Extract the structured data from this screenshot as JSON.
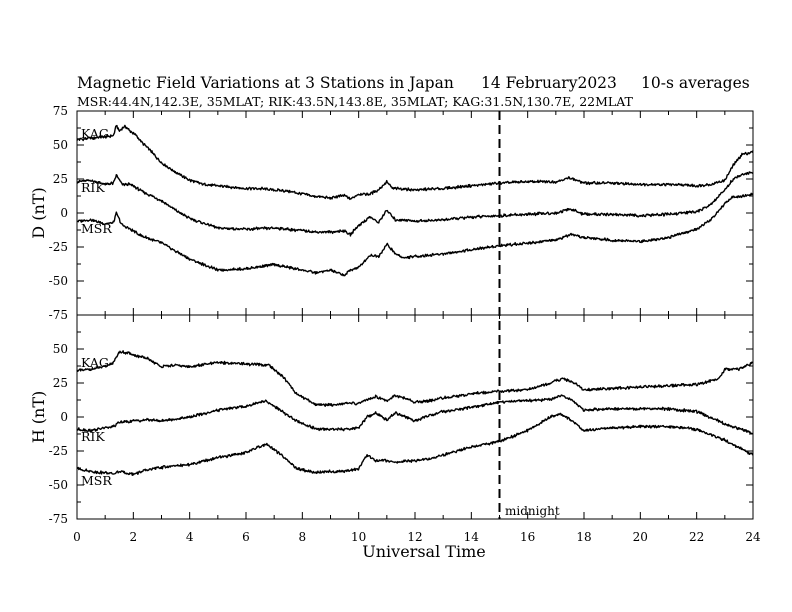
{
  "header": {
    "title": "Magnetic Field Variations at 3 Stations in Japan",
    "date": "14 February2023",
    "averaging": "10-s averages",
    "stations_line": "MSR:44.4N,142.3E, 35MLAT;  RIK:43.5N,143.8E, 35MLAT;  KAG:31.5N,130.7E, 22MLAT"
  },
  "chart_data": [
    {
      "type": "line",
      "panel": "D",
      "ylabel": "D (nT)",
      "xlabel": "",
      "xlim": [
        0,
        24
      ],
      "ylim": [
        -75,
        75
      ],
      "yticks": [
        -75,
        -50,
        -25,
        0,
        25,
        50,
        75
      ],
      "xticks": [
        0,
        2,
        4,
        6,
        8,
        10,
        12,
        14,
        16,
        18,
        20,
        22,
        24
      ],
      "series": [
        {
          "name": "KAG",
          "x": [
            0,
            0.5,
            1,
            1.3,
            1.4,
            1.5,
            1.7,
            1.9,
            2.1,
            2.3,
            2.6,
            3,
            3.5,
            4,
            4.5,
            5,
            5.5,
            6,
            6.5,
            7,
            7.5,
            8,
            8.5,
            9,
            9.5,
            9.7,
            10,
            10.4,
            10.7,
            11,
            11.2,
            11.5,
            12,
            13,
            14,
            15,
            16,
            17,
            17.5,
            18,
            19,
            20,
            21,
            22,
            22.5,
            23,
            23.3,
            23.6,
            24
          ],
          "y": [
            54,
            55,
            56,
            57,
            65,
            60,
            64,
            60,
            57,
            52,
            46,
            37,
            30,
            24,
            21,
            20,
            19,
            18,
            18,
            17,
            16,
            14,
            12,
            11,
            13,
            10,
            14,
            14,
            17,
            23,
            18,
            18,
            17,
            18,
            20,
            22,
            23,
            23,
            26,
            22,
            22,
            21,
            21,
            20,
            21,
            24,
            35,
            43,
            45
          ]
        },
        {
          "name": "RIK",
          "x": [
            0,
            0.5,
            1,
            1.3,
            1.4,
            1.6,
            1.9,
            2.3,
            3,
            3.5,
            4,
            5,
            6,
            7,
            7.5,
            8,
            8.5,
            9,
            9.5,
            9.7,
            10,
            10.4,
            10.7,
            11,
            11.3,
            11.6,
            12,
            13,
            14,
            15,
            16,
            17,
            17.5,
            18,
            19,
            20,
            21,
            22,
            22.5,
            23,
            23.3,
            23.6,
            24
          ],
          "y": [
            23,
            24,
            21,
            22,
            28,
            21,
            21,
            16,
            9,
            2,
            -4,
            -11,
            -12,
            -11,
            -12,
            -13,
            -14,
            -14,
            -13,
            -16,
            -9,
            -3,
            -7,
            2,
            -5,
            -5,
            -6,
            -5,
            -3,
            -2,
            -1,
            0,
            3,
            -1,
            -1,
            -2,
            -1,
            1,
            6,
            17,
            25,
            28,
            30
          ]
        },
        {
          "name": "MSR",
          "x": [
            0,
            0.5,
            1,
            1.3,
            1.4,
            1.6,
            1.9,
            2.3,
            3,
            3.5,
            4,
            5,
            6,
            7,
            7.5,
            8,
            8.5,
            9,
            9.5,
            9.7,
            10,
            10.4,
            10.7,
            11,
            11.3,
            11.6,
            12,
            13,
            14,
            15,
            16,
            17,
            17.5,
            18,
            19,
            20,
            21,
            22,
            22.5,
            23,
            23.3,
            23.6,
            24
          ],
          "y": [
            -6,
            -5,
            -8,
            -7,
            0,
            -9,
            -12,
            -17,
            -22,
            -28,
            -34,
            -42,
            -41,
            -38,
            -40,
            -42,
            -44,
            -42,
            -46,
            -42,
            -40,
            -31,
            -32,
            -23,
            -30,
            -33,
            -32,
            -30,
            -27,
            -24,
            -22,
            -20,
            -16,
            -18,
            -20,
            -21,
            -18,
            -12,
            -5,
            7,
            12,
            12,
            14
          ]
        }
      ]
    },
    {
      "type": "line",
      "panel": "H",
      "ylabel": "H (nT)",
      "xlabel": "Universal Time",
      "xlim": [
        0,
        24
      ],
      "ylim": [
        -75,
        75
      ],
      "yticks": [
        -75,
        -50,
        -25,
        0,
        25,
        50
      ],
      "xticks": [
        0,
        2,
        4,
        6,
        8,
        10,
        12,
        14,
        16,
        18,
        20,
        22,
        24
      ],
      "series": [
        {
          "name": "KAG",
          "x": [
            0,
            0.5,
            1,
            1.3,
            1.5,
            1.8,
            2.1,
            2.5,
            3,
            3.5,
            4,
            5,
            6,
            6.8,
            7.3,
            7.8,
            8.5,
            9,
            9.5,
            10,
            10.3,
            10.6,
            11,
            11.3,
            12,
            12.5,
            13,
            14,
            15,
            16,
            16.8,
            17.2,
            17.6,
            18,
            19,
            20,
            21,
            22,
            22.8,
            23,
            23.5,
            24
          ],
          "y": [
            34,
            35,
            37,
            40,
            48,
            47,
            45,
            43,
            37,
            38,
            37,
            40,
            39,
            38,
            30,
            17,
            9,
            9,
            10,
            10,
            13,
            15,
            12,
            16,
            11,
            12,
            14,
            17,
            19,
            20,
            25,
            28,
            26,
            20,
            21,
            22,
            23,
            24,
            28,
            35,
            35,
            40
          ]
        },
        {
          "name": "RIK",
          "x": [
            0,
            0.5,
            1,
            1.3,
            1.5,
            2,
            2.5,
            3,
            4,
            5,
            6,
            6.7,
            7.2,
            7.8,
            8.5,
            9,
            9.5,
            10,
            10.3,
            10.6,
            11,
            11.3,
            12,
            12.5,
            13,
            14,
            15,
            16,
            16.8,
            17.2,
            17.6,
            18,
            19,
            20,
            21,
            22,
            23,
            24
          ],
          "y": [
            -9,
            -10,
            -8,
            -7,
            -4,
            -3,
            -2,
            -3,
            0,
            5,
            8,
            12,
            5,
            -3,
            -9,
            -9,
            -9,
            -8,
            0,
            3,
            -2,
            3,
            -3,
            1,
            4,
            7,
            11,
            12,
            13,
            16,
            12,
            5,
            6,
            6,
            6,
            4,
            -5,
            -12
          ]
        },
        {
          "name": "MSR",
          "x": [
            0,
            0.5,
            1,
            1.3,
            1.5,
            2,
            2.5,
            3,
            4,
            5,
            6,
            6.7,
            7.2,
            7.8,
            8.5,
            9,
            9.5,
            10,
            10.3,
            10.6,
            11,
            11.3,
            12,
            12.5,
            13,
            14,
            15,
            16,
            16.8,
            17.2,
            17.6,
            18,
            19,
            20,
            21,
            22,
            23,
            24
          ],
          "y": [
            -38,
            -40,
            -41,
            -42,
            -40,
            -42,
            -39,
            -37,
            -35,
            -30,
            -26,
            -20,
            -27,
            -38,
            -41,
            -40,
            -40,
            -38,
            -28,
            -32,
            -32,
            -33,
            -32,
            -31,
            -28,
            -22,
            -18,
            -10,
            0,
            2,
            -3,
            -10,
            -8,
            -7,
            -7,
            -9,
            -17,
            -28
          ]
        }
      ]
    }
  ],
  "x_tick_labels": [
    "0",
    "2",
    "4",
    "6",
    "8",
    "10",
    "12",
    "14",
    "16",
    "18",
    "20",
    "22",
    "24"
  ],
  "d_tick_labels": [
    "75",
    "50",
    "25",
    "0",
    "-25",
    "-50"
  ],
  "h_tick_labels": [
    "50",
    "25",
    "0",
    "-25",
    "-50",
    "-75"
  ],
  "midnight": {
    "x": 15,
    "label": "midnight"
  },
  "station_labels": {
    "d": [
      "KAG",
      "RIK",
      "MSR"
    ],
    "h": [
      "KAG",
      "RIK",
      "MSR"
    ]
  }
}
